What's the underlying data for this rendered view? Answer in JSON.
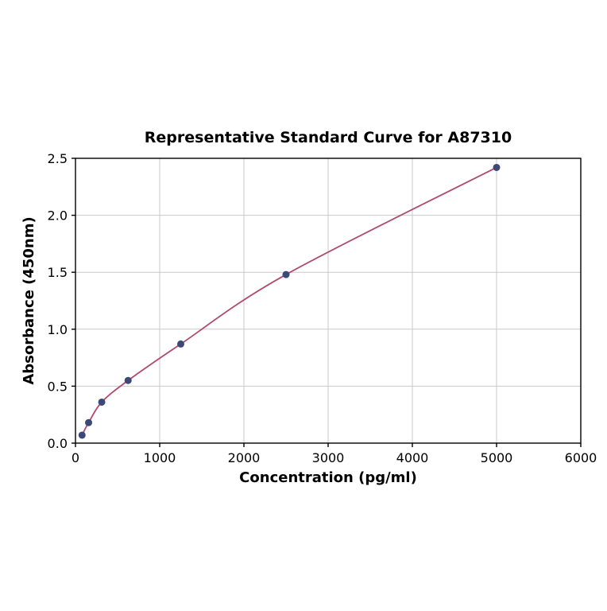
{
  "figure": {
    "title": "Representative Standard Curve for A87310",
    "xlabel": "Concentration (pg/ml)",
    "ylabel": "Absorbance (450nm)"
  },
  "chart_data": {
    "type": "scatter",
    "title": "Representative Standard Curve for A87310",
    "xlabel": "Concentration (pg/ml)",
    "ylabel": "Absorbance (450nm)",
    "x": [
      78,
      156,
      312,
      625,
      1250,
      2500,
      5000
    ],
    "y": [
      0.07,
      0.18,
      0.36,
      0.55,
      0.87,
      1.48,
      2.42
    ],
    "fit_curve": true,
    "xlim": [
      0,
      6000
    ],
    "ylim": [
      0,
      2.5
    ],
    "xticks": [
      0,
      1000,
      2000,
      3000,
      4000,
      5000,
      6000
    ],
    "ytick_labels": [
      "0.0",
      "0.5",
      "1.0",
      "1.5",
      "2.0",
      "2.5"
    ],
    "yticks": [
      0.0,
      0.5,
      1.0,
      1.5,
      2.0,
      2.5
    ],
    "grid": true,
    "legend_position": "none",
    "colors": {
      "marker": "#3b4878",
      "line": "#b04a6e",
      "grid": "#c9c9c9",
      "axis": "#000000",
      "background": "#ffffff"
    }
  }
}
